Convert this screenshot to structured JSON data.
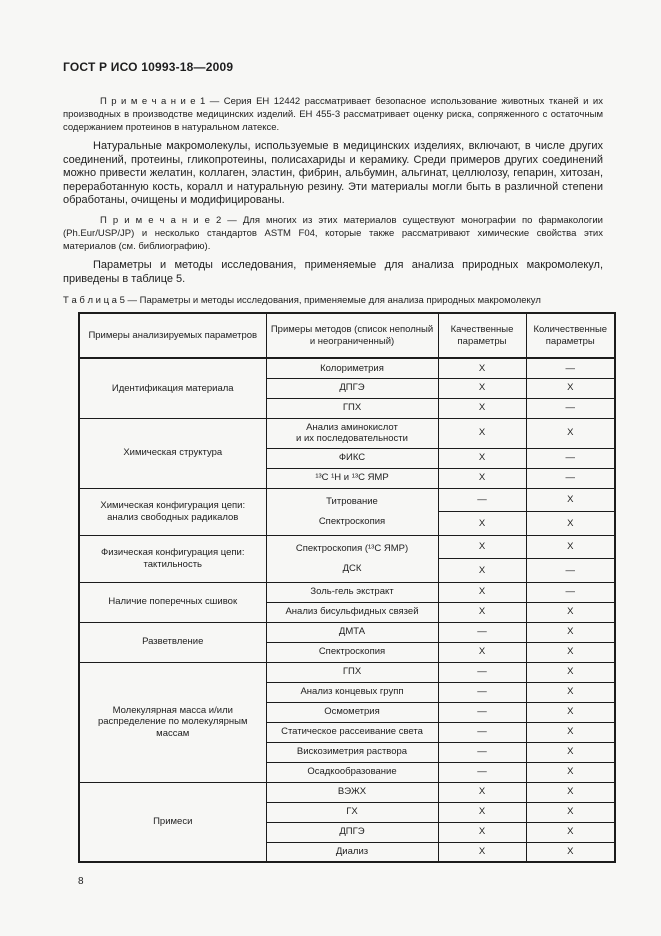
{
  "colors": {
    "page_background": "#f7f7f5",
    "text": "#1e1e1e",
    "table_border": "#1c1c1c"
  },
  "header": {
    "doc_code": "ГОСТ Р ИСО 10993-18—2009"
  },
  "body": {
    "note1": "П р и м е ч а н и е   1 — Серия ЕН 12442 рассматривает безопасное использование животных тканей и их производных в производстве медицинских изделий. ЕН 455-3 рассматривает оценку риска, сопряженного с остаточным содержанием протеинов в натуральном латексе.",
    "para1": "Натуральные макромолекулы, используемые в медицинских изделиях, включают, в числе других соединений, протеины, гликопротеины, полисахариды и керамику. Среди примеров других соединений можно привести желатин, коллаген, эластин, фибрин, альбумин, альгинат, целлюлозу, гепарин, хитозан, переработанную кость, коралл и натуральную резину. Эти материалы могли быть в различной степени обработаны, очищены и модифицированы.",
    "note2": "П р и м е ч а н и е   2 — Для многих из этих материалов существуют монографии по фармакологии (Ph.Eur/USP/JP) и несколько стандартов ASTM F04, которые также рассматривают химические свойства этих материалов (см. библиографию).",
    "para2": "Параметры и методы исследования, применяемые для анализа природных макромолекул, приведены в таблице 5.",
    "table_caption": "Т а б л и ц а   5 — Параметры и методы исследования, применяемые для анализа природных макромолекул"
  },
  "table": {
    "headers": [
      "Примеры анализируемых параметров",
      "Примеры методов (список неполный и неограниченный)",
      "Качественные параметры",
      "Количественные параметры"
    ],
    "groups": [
      {
        "parameter": "Идентификация материала",
        "rows": [
          {
            "method": "Колориметрия",
            "qual": "X",
            "quant": "—"
          },
          {
            "method": "ДПГЭ",
            "qual": "X",
            "quant": "X"
          },
          {
            "method": "ГПХ",
            "qual": "X",
            "quant": "—"
          }
        ]
      },
      {
        "parameter": "Химическая структура",
        "rows": [
          {
            "method": "Анализ аминокислот\nи их последовательности",
            "qual": "X",
            "quant": "X"
          },
          {
            "method": "ФИКС",
            "qual": "X",
            "quant": "—"
          },
          {
            "method": "¹³C ¹H и ¹³C ЯМР",
            "qual": "X",
            "quant": "—"
          }
        ]
      },
      {
        "parameter": "Химическая конфигурация цепи: анализ свободных радикалов",
        "rows": [
          {
            "method": "Титрование\nСпектроскопия",
            "method_span": 2,
            "qual": "—",
            "quant": "X"
          },
          {
            "method": null,
            "qual": "X",
            "quant": "X"
          }
        ]
      },
      {
        "parameter": "Физическая конфигурация цепи: тактильность",
        "rows": [
          {
            "method": "Спектроскопия (¹³C ЯМР)\nДСК",
            "method_span": 2,
            "qual": "X",
            "quant": "X"
          },
          {
            "method": null,
            "qual": "X",
            "quant": "—"
          }
        ]
      },
      {
        "parameter": "Наличие поперечных сшивок",
        "rows": [
          {
            "method": "Золь-гель экстракт",
            "qual": "X",
            "quant": "—"
          },
          {
            "method": "Анализ бисульфидных связей",
            "qual": "X",
            "quant": "X"
          }
        ]
      },
      {
        "parameter": "Разветвление",
        "rows": [
          {
            "method": "ДМТА",
            "qual": "—",
            "quant": "X"
          },
          {
            "method": "Спектроскопия",
            "qual": "X",
            "quant": "X"
          }
        ]
      },
      {
        "parameter": "Молекулярная масса и/или распределение по молекулярным массам",
        "rows": [
          {
            "method": "ГПХ",
            "qual": "—",
            "quant": "X"
          },
          {
            "method": "Анализ концевых групп",
            "qual": "—",
            "quant": "X"
          },
          {
            "method": "Осмометрия",
            "qual": "—",
            "quant": "X"
          },
          {
            "method": "Статическое рассеивание света",
            "qual": "—",
            "quant": "X"
          },
          {
            "method": "Вискозиметрия раствора",
            "qual": "—",
            "quant": "X"
          },
          {
            "method": "Осадкообразование",
            "qual": "—",
            "quant": "X"
          }
        ]
      },
      {
        "parameter": "Примеси",
        "rows": [
          {
            "method": "ВЭЖХ",
            "qual": "X",
            "quant": "X"
          },
          {
            "method": "ГХ",
            "qual": "X",
            "quant": "X"
          },
          {
            "method": "ДПГЭ",
            "qual": "X",
            "quant": "X"
          },
          {
            "method": "Диализ",
            "qual": "X",
            "quant": "X"
          }
        ]
      }
    ]
  },
  "footer": {
    "page_number": "8"
  }
}
